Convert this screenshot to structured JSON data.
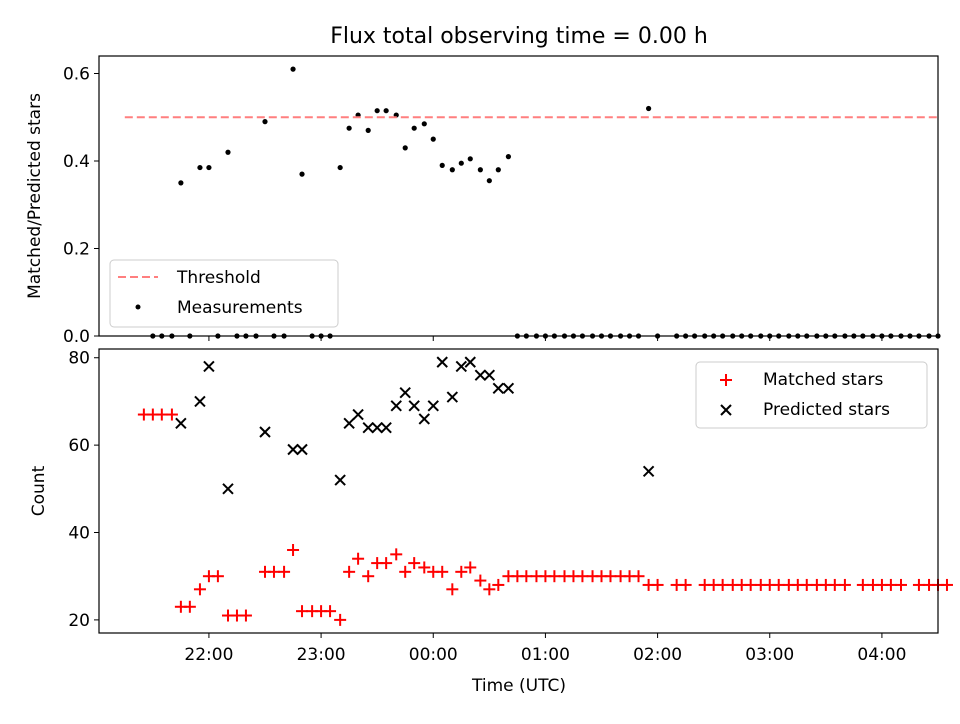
{
  "figure": {
    "title": "Flux total observing time = 0.00 h",
    "xlabel": "Time (UTC)",
    "x_ticks": [
      "22:00",
      "23:00",
      "00:00",
      "01:00",
      "02:00",
      "03:00",
      "04:00"
    ]
  },
  "chart_data": [
    {
      "type": "scatter",
      "ylabel": "Matched/Predicted stars",
      "ylim": [
        0,
        0.64
      ],
      "y_ticks": [
        "0.0",
        "0.2",
        "0.4",
        "0.6"
      ],
      "grid": false,
      "legend_position": "lower-left",
      "threshold": {
        "name": "Threshold",
        "value": 0.5,
        "x_range": [
          -2.75,
          4.5
        ],
        "color": "#ff7f7f"
      },
      "measurements": {
        "name": "Measurements",
        "color": "#000000",
        "points": [
          [
            -2.5,
            0.0
          ],
          [
            -2.42,
            0.0
          ],
          [
            -2.33,
            0.0
          ],
          [
            -2.25,
            0.35
          ],
          [
            -2.17,
            0.0
          ],
          [
            -2.08,
            0.385
          ],
          [
            -2.0,
            0.385
          ],
          [
            -1.92,
            0.0
          ],
          [
            -1.83,
            0.42
          ],
          [
            -1.75,
            0.0
          ],
          [
            -1.67,
            0.0
          ],
          [
            -1.58,
            0.0
          ],
          [
            -1.5,
            0.49
          ],
          [
            -1.42,
            0.0
          ],
          [
            -1.33,
            0.0
          ],
          [
            -1.25,
            0.61
          ],
          [
            -1.17,
            0.37
          ],
          [
            -1.08,
            0.0
          ],
          [
            -1.0,
            0.0
          ],
          [
            -0.92,
            0.0
          ],
          [
            -0.83,
            0.385
          ],
          [
            -0.75,
            0.475
          ],
          [
            -0.67,
            0.505
          ],
          [
            -0.58,
            0.47
          ],
          [
            -0.5,
            0.515
          ],
          [
            -0.42,
            0.515
          ],
          [
            -0.33,
            0.505
          ],
          [
            -0.25,
            0.43
          ],
          [
            -0.17,
            0.475
          ],
          [
            -0.08,
            0.485
          ],
          [
            0.0,
            0.45
          ],
          [
            0.08,
            0.39
          ],
          [
            0.17,
            0.38
          ],
          [
            0.25,
            0.395
          ],
          [
            0.33,
            0.405
          ],
          [
            0.42,
            0.38
          ],
          [
            0.5,
            0.355
          ],
          [
            0.58,
            0.38
          ],
          [
            0.67,
            0.41
          ],
          [
            0.75,
            0.0
          ],
          [
            0.83,
            0.0
          ],
          [
            0.92,
            0.0
          ],
          [
            1.0,
            0.0
          ],
          [
            1.08,
            0.0
          ],
          [
            1.17,
            0.0
          ],
          [
            1.25,
            0.0
          ],
          [
            1.33,
            0.0
          ],
          [
            1.42,
            0.0
          ],
          [
            1.5,
            0.0
          ],
          [
            1.58,
            0.0
          ],
          [
            1.67,
            0.0
          ],
          [
            1.75,
            0.0
          ],
          [
            1.83,
            0.0
          ],
          [
            1.92,
            0.52
          ],
          [
            2.0,
            0.0
          ],
          [
            2.17,
            0.0
          ],
          [
            2.25,
            0.0
          ],
          [
            2.33,
            0.0
          ],
          [
            2.42,
            0.0
          ],
          [
            2.5,
            0.0
          ],
          [
            2.58,
            0.0
          ],
          [
            2.67,
            0.0
          ],
          [
            2.75,
            0.0
          ],
          [
            2.83,
            0.0
          ],
          [
            2.92,
            0.0
          ],
          [
            3.0,
            0.0
          ],
          [
            3.08,
            0.0
          ],
          [
            3.17,
            0.0
          ],
          [
            3.25,
            0.0
          ],
          [
            3.33,
            0.0
          ],
          [
            3.42,
            0.0
          ],
          [
            3.5,
            0.0
          ],
          [
            3.58,
            0.0
          ],
          [
            3.67,
            0.0
          ],
          [
            3.75,
            0.0
          ],
          [
            3.83,
            0.0
          ],
          [
            3.92,
            0.0
          ],
          [
            4.0,
            0.0
          ],
          [
            4.08,
            0.0
          ],
          [
            4.17,
            0.0
          ],
          [
            4.25,
            0.0
          ],
          [
            4.33,
            0.0
          ],
          [
            4.42,
            0.0
          ],
          [
            4.5,
            0.0
          ]
        ]
      }
    },
    {
      "type": "scatter",
      "ylabel": "Count",
      "ylim": [
        17,
        82
      ],
      "y_ticks": [
        "20",
        "40",
        "60",
        "80"
      ],
      "grid": false,
      "legend_position": "upper-right",
      "series": [
        {
          "name": "Matched stars",
          "marker": "plus",
          "color": "#ff0000",
          "points": [
            [
              -2.58,
              67
            ],
            [
              -2.5,
              67
            ],
            [
              -2.42,
              67
            ],
            [
              -2.33,
              67
            ],
            [
              -2.25,
              23
            ],
            [
              -2.17,
              23
            ],
            [
              -2.08,
              27
            ],
            [
              -2.0,
              30
            ],
            [
              -1.92,
              30
            ],
            [
              -1.83,
              21
            ],
            [
              -1.75,
              21
            ],
            [
              -1.67,
              21
            ],
            [
              -1.5,
              31
            ],
            [
              -1.42,
              31
            ],
            [
              -1.33,
              31
            ],
            [
              -1.25,
              36
            ],
            [
              -1.17,
              22
            ],
            [
              -1.08,
              22
            ],
            [
              -1.0,
              22
            ],
            [
              -0.92,
              22
            ],
            [
              -0.83,
              20
            ],
            [
              -0.75,
              31
            ],
            [
              -0.67,
              34
            ],
            [
              -0.58,
              30
            ],
            [
              -0.5,
              33
            ],
            [
              -0.42,
              33
            ],
            [
              -0.33,
              35
            ],
            [
              -0.25,
              31
            ],
            [
              -0.17,
              33
            ],
            [
              -0.08,
              32
            ],
            [
              0.0,
              31
            ],
            [
              0.08,
              31
            ],
            [
              0.17,
              27
            ],
            [
              0.25,
              31
            ],
            [
              0.33,
              32
            ],
            [
              0.42,
              29
            ],
            [
              0.5,
              27
            ],
            [
              0.58,
              28
            ],
            [
              0.67,
              30
            ],
            [
              0.75,
              30
            ],
            [
              0.83,
              30
            ],
            [
              0.92,
              30
            ],
            [
              1.0,
              30
            ],
            [
              1.08,
              30
            ],
            [
              1.17,
              30
            ],
            [
              1.25,
              30
            ],
            [
              1.33,
              30
            ],
            [
              1.42,
              30
            ],
            [
              1.5,
              30
            ],
            [
              1.58,
              30
            ],
            [
              1.67,
              30
            ],
            [
              1.75,
              30
            ],
            [
              1.83,
              30
            ],
            [
              1.92,
              28
            ],
            [
              2.0,
              28
            ],
            [
              2.17,
              28
            ],
            [
              2.25,
              28
            ],
            [
              2.42,
              28
            ],
            [
              2.5,
              28
            ],
            [
              2.58,
              28
            ],
            [
              2.67,
              28
            ],
            [
              2.75,
              28
            ],
            [
              2.83,
              28
            ],
            [
              2.92,
              28
            ],
            [
              3.0,
              28
            ],
            [
              3.08,
              28
            ],
            [
              3.17,
              28
            ],
            [
              3.25,
              28
            ],
            [
              3.33,
              28
            ],
            [
              3.42,
              28
            ],
            [
              3.5,
              28
            ],
            [
              3.58,
              28
            ],
            [
              3.67,
              28
            ],
            [
              3.83,
              28
            ],
            [
              3.92,
              28
            ],
            [
              4.0,
              28
            ],
            [
              4.08,
              28
            ],
            [
              4.17,
              28
            ],
            [
              4.33,
              28
            ],
            [
              4.42,
              28
            ],
            [
              4.5,
              28
            ],
            [
              4.58,
              28
            ]
          ]
        },
        {
          "name": "Predicted stars",
          "marker": "x",
          "color": "#000000",
          "points": [
            [
              -2.25,
              65
            ],
            [
              -2.08,
              70
            ],
            [
              -2.0,
              78
            ],
            [
              -1.83,
              50
            ],
            [
              -1.5,
              63
            ],
            [
              -1.25,
              59
            ],
            [
              -1.17,
              59
            ],
            [
              -0.83,
              52
            ],
            [
              -0.75,
              65
            ],
            [
              -0.67,
              67
            ],
            [
              -0.58,
              64
            ],
            [
              -0.5,
              64
            ],
            [
              -0.42,
              64
            ],
            [
              -0.33,
              69
            ],
            [
              -0.25,
              72
            ],
            [
              -0.17,
              69
            ],
            [
              -0.08,
              66
            ],
            [
              0.0,
              69
            ],
            [
              0.08,
              79
            ],
            [
              0.17,
              71
            ],
            [
              0.25,
              78
            ],
            [
              0.33,
              79
            ],
            [
              0.42,
              76
            ],
            [
              0.5,
              76
            ],
            [
              0.58,
              73
            ],
            [
              0.67,
              73
            ],
            [
              1.92,
              54
            ]
          ]
        }
      ]
    }
  ]
}
